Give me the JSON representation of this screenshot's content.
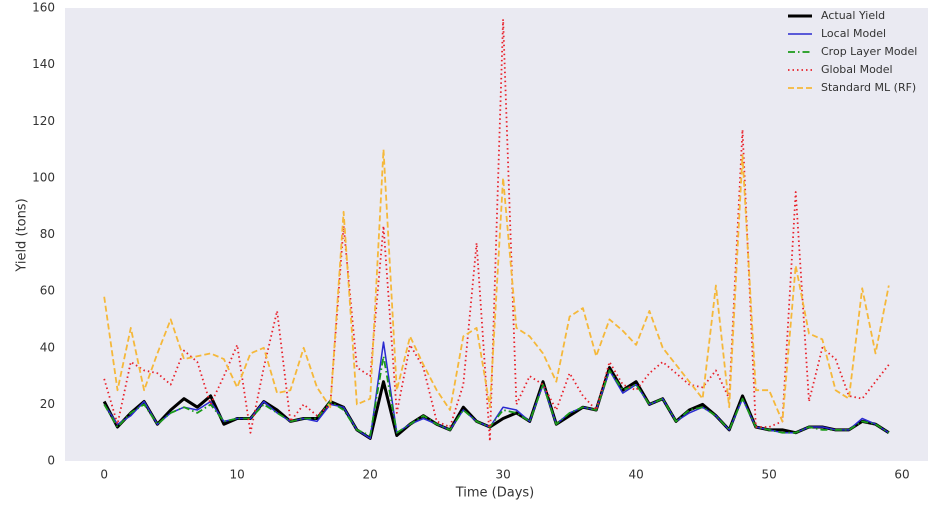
{
  "chart_data": {
    "type": "line",
    "x_label": "Time (Days)",
    "y_label": "Yield (tons)",
    "x": [
      0,
      1,
      2,
      3,
      4,
      5,
      6,
      7,
      8,
      9,
      10,
      11,
      12,
      13,
      14,
      15,
      16,
      17,
      18,
      19,
      20,
      21,
      22,
      23,
      24,
      25,
      26,
      27,
      28,
      29,
      30,
      31,
      32,
      33,
      34,
      35,
      36,
      37,
      38,
      39,
      40,
      41,
      42,
      43,
      44,
      45,
      46,
      47,
      48,
      49,
      50,
      51,
      52,
      53,
      54,
      55,
      56,
      57,
      58,
      59
    ],
    "xlim": [
      -2.95,
      61.95
    ],
    "xticks": [
      0,
      10,
      20,
      30,
      40,
      50,
      60
    ],
    "ylim": [
      0,
      160
    ],
    "yticks": [
      0,
      20,
      40,
      60,
      80,
      100,
      120,
      140,
      160
    ],
    "grid": false,
    "legend": "upper right",
    "series": [
      {
        "name": "Actual Yield",
        "color": "#000000",
        "linestyle": "solid",
        "values": [
          21,
          12,
          17,
          21,
          13,
          18,
          22,
          19,
          23,
          13,
          15,
          15,
          21,
          18,
          14,
          15,
          15,
          21,
          19,
          11,
          8,
          28,
          9,
          13,
          16,
          13,
          11,
          19,
          14,
          12,
          15,
          17,
          14,
          28,
          13,
          16,
          19,
          18,
          33,
          25,
          28,
          20,
          22,
          14,
          18,
          20,
          16,
          11,
          23,
          12,
          11,
          11,
          10,
          12,
          12,
          11,
          11,
          14,
          13,
          10
        ]
      },
      {
        "name": "Local Model",
        "color": "#2a2ad0",
        "linestyle": "solid",
        "values": [
          20,
          13,
          16,
          21,
          13,
          17,
          19,
          18,
          21,
          14,
          15,
          15,
          21,
          17,
          14,
          15,
          14,
          20,
          19,
          11,
          8,
          42,
          10,
          13,
          15,
          13,
          11,
          18,
          14,
          12,
          19,
          18,
          14,
          27,
          13,
          17,
          19,
          18,
          32,
          24,
          27,
          20,
          22,
          14,
          17,
          19,
          16,
          11,
          22,
          12,
          11,
          10,
          10,
          12,
          12,
          11,
          11,
          15,
          13,
          10
        ]
      },
      {
        "name": "Crop Layer Model",
        "color": "#1a9a1a",
        "linestyle": "dashdot",
        "values": [
          20,
          12,
          17,
          20,
          13,
          17,
          19,
          17,
          20,
          14,
          15,
          15,
          20,
          17,
          14,
          15,
          15,
          21,
          18,
          11,
          9,
          37,
          10,
          13,
          16,
          13,
          11,
          18,
          14,
          12,
          18,
          17,
          14,
          27,
          13,
          17,
          19,
          18,
          32,
          25,
          27,
          20,
          22,
          14,
          18,
          19,
          16,
          11,
          22,
          12,
          11,
          10,
          10,
          12,
          11,
          11,
          11,
          14,
          13,
          10
        ]
      },
      {
        "name": "Global Model",
        "color": "#e8202a",
        "linestyle": "dotted",
        "values": [
          29,
          13,
          35,
          32,
          31,
          27,
          39,
          35,
          20,
          30,
          41,
          10,
          33,
          53,
          14,
          20,
          16,
          20,
          83,
          33,
          30,
          83,
          17,
          41,
          33,
          14,
          12,
          27,
          77,
          7,
          156,
          20,
          30,
          27,
          18,
          31,
          23,
          18,
          35,
          27,
          25,
          31,
          35,
          31,
          27,
          26,
          32,
          22,
          117,
          12,
          12,
          14,
          95,
          21,
          40,
          36,
          23,
          22,
          28,
          34
        ]
      },
      {
        "name": "Standard ML (RF)",
        "color": "#f5b83a",
        "linestyle": "dashed",
        "values": [
          58,
          25,
          47,
          25,
          38,
          50,
          36,
          37,
          38,
          36,
          26,
          38,
          40,
          24,
          25,
          40,
          26,
          19,
          88,
          20,
          22,
          110,
          25,
          44,
          34,
          25,
          18,
          44,
          47,
          19,
          100,
          47,
          44,
          38,
          28,
          51,
          54,
          37,
          50,
          46,
          41,
          53,
          40,
          34,
          28,
          22,
          62,
          19,
          108,
          25,
          25,
          14,
          69,
          45,
          43,
          25,
          22,
          61,
          38,
          62
        ]
      }
    ]
  }
}
